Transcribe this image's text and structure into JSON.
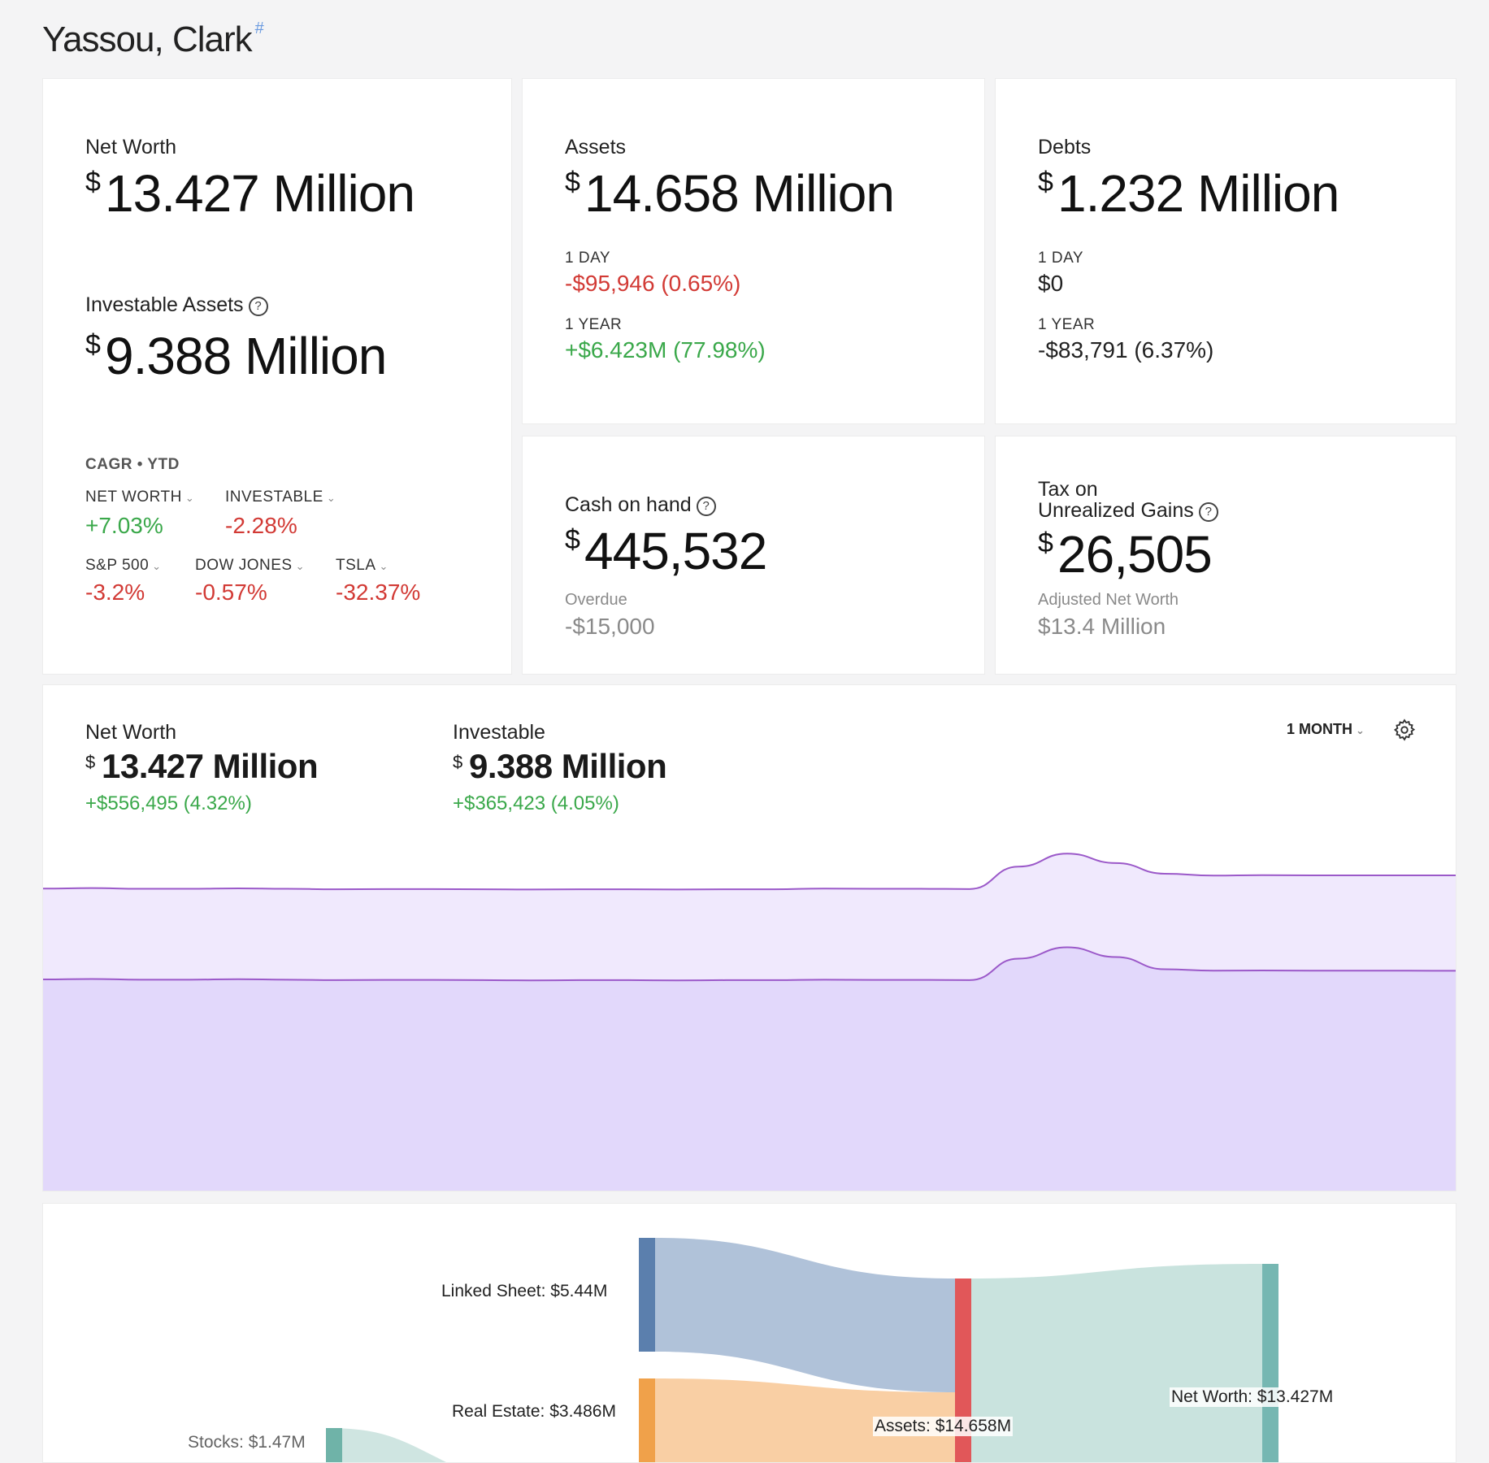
{
  "header": {
    "title": "Yassou, Clark",
    "anchor": "#"
  },
  "net_worth_card": {
    "label": "Net Worth",
    "currency": "$",
    "value": "13.427 Million",
    "investable_label": "Investable Assets",
    "help": "?",
    "investable_value": "9.388 Million",
    "cagr_label": "CAGR • YTD",
    "metrics": [
      {
        "label": "NET WORTH",
        "value": "+7.03%"
      },
      {
        "label": "INVESTABLE",
        "value": "-2.28%"
      },
      {
        "label": "S&P 500",
        "value": "-3.2%"
      },
      {
        "label": "DOW JONES",
        "value": "-0.57%"
      },
      {
        "label": "TSLA",
        "value": "-32.37%"
      }
    ]
  },
  "assets_card": {
    "label": "Assets",
    "currency": "$",
    "value": "14.658 Million",
    "day_label": "1 DAY",
    "day_value": "-$95,946 (0.65%)",
    "year_label": "1 YEAR",
    "year_value": "+$6.423M (77.98%)"
  },
  "debts_card": {
    "label": "Debts",
    "currency": "$",
    "value": "1.232 Million",
    "day_label": "1 DAY",
    "day_value": "$0",
    "year_label": "1 YEAR",
    "year_value": "-$83,791 (6.37%)"
  },
  "cash_card": {
    "label": "Cash on hand",
    "help": "?",
    "currency": "$",
    "value": "445,532",
    "sub_label": "Overdue",
    "sub_value": "-$15,000"
  },
  "tax_card": {
    "label_line1": "Tax on",
    "label_line2": "Unrealized Gains",
    "help": "?",
    "currency": "$",
    "value": "26,505",
    "sub_label": "Adjusted Net Worth",
    "sub_value": "$13.4 Million"
  },
  "chart_card": {
    "period": "1 MONTH",
    "net_worth": {
      "label": "Net Worth",
      "currency": "$",
      "value": "13.427 Million",
      "change": "+$556,495 (4.32%)"
    },
    "investable": {
      "label": "Investable",
      "currency": "$",
      "value": "9.388 Million",
      "change": "+$365,423 (4.05%)"
    }
  },
  "chart_data": {
    "type": "area",
    "title": "",
    "period": "1 MONTH",
    "x": [
      1,
      2,
      3,
      4,
      5,
      6,
      7,
      8,
      9,
      10,
      11,
      12,
      13,
      14,
      15,
      16,
      17,
      18,
      19,
      20,
      21,
      22,
      23,
      24,
      25,
      26,
      27,
      28,
      29,
      30
    ],
    "series": [
      {
        "name": "Net Worth",
        "values": [
          12.87,
          12.89,
          12.86,
          12.86,
          12.88,
          12.86,
          12.84,
          12.85,
          12.85,
          12.84,
          12.83,
          12.84,
          12.84,
          12.83,
          12.84,
          12.84,
          12.87,
          12.86,
          12.86,
          12.85,
          13.8,
          14.35,
          13.95,
          13.5,
          13.42,
          13.44,
          13.43,
          13.43,
          13.43,
          13.427
        ]
      },
      {
        "name": "Investable",
        "values": [
          9.02,
          9.04,
          9.01,
          9.01,
          9.03,
          9.01,
          8.99,
          9.0,
          9.0,
          8.99,
          8.98,
          8.99,
          8.99,
          8.98,
          8.99,
          8.99,
          9.01,
          9.0,
          9.0,
          8.99,
          9.9,
          10.38,
          9.97,
          9.45,
          9.39,
          9.4,
          9.39,
          9.39,
          9.39,
          9.388
        ]
      }
    ],
    "ylim": [
      0,
      14.6
    ],
    "xlabel": "",
    "ylabel": "",
    "grid": false,
    "legend": "none"
  },
  "sankey": {
    "nodes": [
      {
        "name": "Linked  Sheet: $5.44M",
        "color": "#5b7fad"
      },
      {
        "name": "Real Estate: $3.486M",
        "color": "#f0a14a"
      },
      {
        "name": "Stocks: $1.47M",
        "color": "#6fb3a8"
      },
      {
        "name": "Assets: $14.658M",
        "color": "#e15759"
      },
      {
        "name": "Net Worth: $13.427M",
        "color": "#76b7b2"
      }
    ],
    "links": [
      {
        "source": "Linked  Sheet: $5.44M",
        "target": "Assets: $14.658M",
        "value": 5.44,
        "color": "#b0c2d9"
      },
      {
        "source": "Real Estate: $3.486M",
        "target": "Assets: $14.658M",
        "value": 3.486,
        "color": "#f9cfa4"
      },
      {
        "source": "Assets: $14.658M",
        "target": "Net Worth: $13.427M",
        "value": 13.427,
        "color": "#c9e3de"
      }
    ]
  }
}
